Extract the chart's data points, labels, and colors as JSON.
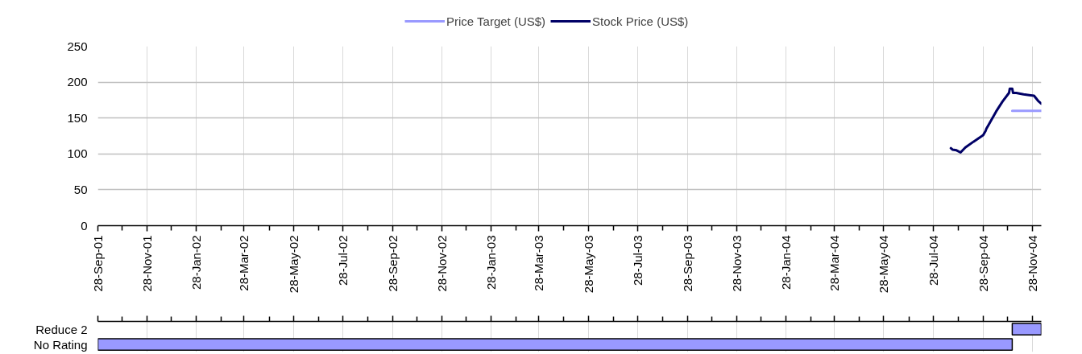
{
  "chart_data": [
    {
      "type": "line",
      "legend": "top",
      "grid": true,
      "xlim": [
        "2001-09-28",
        "2004-12-09"
      ],
      "ylim": [
        0,
        250
      ],
      "yticks": [
        0,
        50,
        100,
        150,
        200,
        250
      ],
      "xticks": [
        {
          "value": "2001-09-28",
          "label": "28-Sep-01"
        },
        {
          "value": "2001-10-28",
          "label": null
        },
        {
          "value": "2001-11-28",
          "label": "28-Nov-01"
        },
        {
          "value": "2001-12-28",
          "label": null
        },
        {
          "value": "2002-01-28",
          "label": "28-Jan-02"
        },
        {
          "value": "2002-02-28",
          "label": null
        },
        {
          "value": "2002-03-28",
          "label": "28-Mar-02"
        },
        {
          "value": "2002-04-28",
          "label": null
        },
        {
          "value": "2002-05-28",
          "label": "28-May-02"
        },
        {
          "value": "2002-06-28",
          "label": null
        },
        {
          "value": "2002-07-28",
          "label": "28-Jul-02"
        },
        {
          "value": "2002-08-28",
          "label": null
        },
        {
          "value": "2002-09-28",
          "label": "28-Sep-02"
        },
        {
          "value": "2002-10-28",
          "label": null
        },
        {
          "value": "2002-11-28",
          "label": "28-Nov-02"
        },
        {
          "value": "2002-12-28",
          "label": null
        },
        {
          "value": "2003-01-28",
          "label": "28-Jan-03"
        },
        {
          "value": "2003-02-28",
          "label": null
        },
        {
          "value": "2003-03-28",
          "label": "28-Mar-03"
        },
        {
          "value": "2003-04-28",
          "label": null
        },
        {
          "value": "2003-05-28",
          "label": "28-May-03"
        },
        {
          "value": "2003-06-28",
          "label": null
        },
        {
          "value": "2003-07-28",
          "label": "28-Jul-03"
        },
        {
          "value": "2003-08-28",
          "label": null
        },
        {
          "value": "2003-09-28",
          "label": "28-Sep-03"
        },
        {
          "value": "2003-10-28",
          "label": null
        },
        {
          "value": "2003-11-28",
          "label": "28-Nov-03"
        },
        {
          "value": "2003-12-28",
          "label": null
        },
        {
          "value": "2004-01-28",
          "label": "28-Jan-04"
        },
        {
          "value": "2004-02-28",
          "label": null
        },
        {
          "value": "2004-03-28",
          "label": "28-Mar-04"
        },
        {
          "value": "2004-04-28",
          "label": null
        },
        {
          "value": "2004-05-28",
          "label": "28-May-04"
        },
        {
          "value": "2004-06-28",
          "label": null
        },
        {
          "value": "2004-07-28",
          "label": "28-Jul-04"
        },
        {
          "value": "2004-08-28",
          "label": null
        },
        {
          "value": "2004-09-28",
          "label": "28-Sep-04"
        },
        {
          "value": "2004-10-28",
          "label": null
        },
        {
          "value": "2004-11-28",
          "label": "28-Nov-04"
        }
      ],
      "series": [
        {
          "name": "Price Target (US$)",
          "color": "#9999ff",
          "x": [
            "2004-11-03",
            "2004-12-09"
          ],
          "values": [
            160,
            160
          ]
        },
        {
          "name": "Stock Price (US$)",
          "color": "#000066",
          "x": [
            "2004-08-19",
            "2004-08-21",
            "2004-08-26",
            "2004-08-31",
            "2004-09-06",
            "2004-09-16",
            "2004-09-24",
            "2004-09-28",
            "2004-10-01",
            "2004-10-02",
            "2004-10-05",
            "2004-10-14",
            "2004-10-22",
            "2004-10-30",
            "2004-10-31",
            "2004-11-03",
            "2004-11-04",
            "2004-11-08",
            "2004-11-17",
            "2004-11-24",
            "2004-11-30",
            "2004-12-05",
            "2004-12-09"
          ],
          "values": [
            108,
            106,
            105,
            102,
            109,
            117,
            123,
            126,
            132,
            135,
            141,
            159,
            173,
            185,
            191,
            191,
            185,
            185,
            183,
            182,
            181,
            174,
            170
          ]
        }
      ]
    },
    {
      "type": "bar",
      "orientation": "horizontal",
      "grid": "x",
      "tick_labels": "y",
      "categories": [
        "Reduce 2",
        "No Rating"
      ],
      "xlim": [
        "2001-09-28",
        "2004-12-09"
      ],
      "bands": [
        {
          "axis": "x",
          "from": "2004-11-03",
          "to": "2004-12-09",
          "color": "#9999ff"
        },
        {
          "axis": "x",
          "from": "2001-09-28",
          "to": "2004-11-03",
          "color": "#9999ff"
        }
      ],
      "xticks": [
        "2001-09-28",
        {
          "value": "2001-10-28",
          "label": null
        },
        "2001-11-28",
        {
          "value": "2001-12-28",
          "label": null
        },
        "2002-01-28",
        {
          "value": "2002-02-28",
          "label": null
        },
        "2002-03-28",
        {
          "value": "2002-04-28",
          "label": null
        },
        "2002-05-28",
        {
          "value": "2002-06-28",
          "label": null
        },
        "2002-07-28",
        {
          "value": "2002-08-28",
          "label": null
        },
        "2002-09-28",
        {
          "value": "2002-10-28",
          "label": null
        },
        "2002-11-28",
        {
          "value": "2002-12-28",
          "label": null
        },
        "2003-01-28",
        {
          "value": "2003-02-28",
          "label": null
        },
        "2003-03-28",
        {
          "value": "2003-04-28",
          "label": null
        },
        "2003-05-28",
        {
          "value": "2003-06-28",
          "label": null
        },
        "2003-07-28",
        {
          "value": "2003-08-28",
          "label": null
        },
        "2003-09-28",
        {
          "value": "2003-10-28",
          "label": null
        },
        "2003-11-28",
        {
          "value": "2003-12-28",
          "label": null
        },
        "2004-01-28",
        {
          "value": "2004-02-28",
          "label": null
        },
        "2004-03-28",
        {
          "value": "2004-04-28",
          "label": null
        },
        "2004-05-28",
        {
          "value": "2004-06-28",
          "label": null
        },
        "2004-07-28",
        {
          "value": "2004-08-28",
          "label": null
        },
        "2004-09-28",
        {
          "value": "2004-10-28",
          "label": null
        },
        "2004-11-28"
      ]
    }
  ]
}
